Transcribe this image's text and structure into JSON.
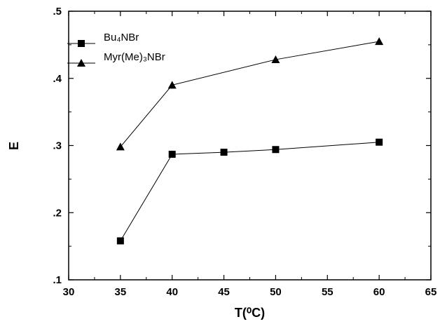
{
  "chart_data": {
    "type": "line",
    "xlabel": "T(⁰C)",
    "ylabel": "E",
    "xlim": [
      30,
      65
    ],
    "ylim": [
      0.1,
      0.5
    ],
    "x_ticks": [
      30,
      35,
      40,
      45,
      50,
      55,
      60,
      65
    ],
    "x_tick_labels": [
      "30",
      "35",
      "40",
      "45",
      "50",
      "55",
      "60",
      "65"
    ],
    "y_ticks": [
      0.1,
      0.2,
      0.3,
      0.4,
      0.5
    ],
    "y_tick_labels": [
      ".1",
      ".2",
      ".3",
      ".4",
      ".5"
    ],
    "grid": false,
    "legend_position": "top-left",
    "series": [
      {
        "name": "Bu₄NBr",
        "marker": "square",
        "x": [
          35,
          40,
          45,
          50,
          60
        ],
        "y": [
          0.158,
          0.287,
          0.29,
          0.294,
          0.305
        ]
      },
      {
        "name": "Myr(Me)₃NBr",
        "marker": "triangle",
        "x": [
          35,
          40,
          50,
          60
        ],
        "y": [
          0.298,
          0.39,
          0.428,
          0.455
        ]
      }
    ]
  }
}
